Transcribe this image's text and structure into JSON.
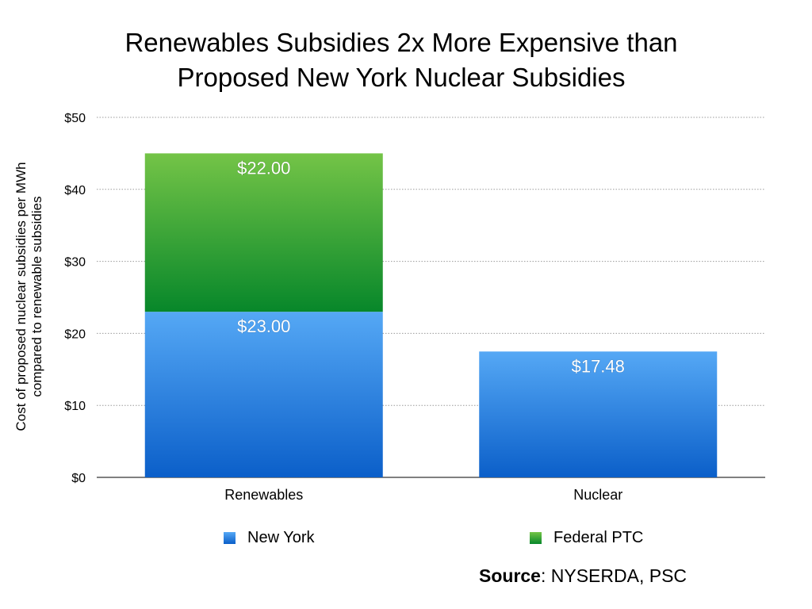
{
  "chart_data": {
    "type": "bar",
    "stacked": true,
    "title_lines": [
      "Renewables Subsidies 2x More Expensive than",
      "Proposed New York Nuclear Subsidies"
    ],
    "ylabel_lines": [
      "Cost of proposed nuclear subsidies per MWh",
      "compared to renewable subsidies"
    ],
    "xlabel": "",
    "categories": [
      "Renewables",
      "Nuclear"
    ],
    "series": [
      {
        "name": "New York",
        "values": [
          23.0,
          17.48
        ],
        "labels": [
          "$23.00",
          "$17.48"
        ],
        "color_top": "#55a8f5",
        "color_bottom": "#0b5fc9"
      },
      {
        "name": "Federal PTC",
        "values": [
          22.0,
          0
        ],
        "labels": [
          "$22.00",
          ""
        ],
        "color_top": "#74c447",
        "color_bottom": "#07872a"
      }
    ],
    "ylim": [
      0,
      50
    ],
    "yticks": [
      0,
      10,
      20,
      30,
      40,
      50
    ],
    "ytick_labels": [
      "$0",
      "$10",
      "$20",
      "$30",
      "$40",
      "$50"
    ],
    "grid": true,
    "legend_position": "bottom"
  },
  "source": {
    "label": "Source",
    "text": ": NYSERDA, PSC"
  }
}
